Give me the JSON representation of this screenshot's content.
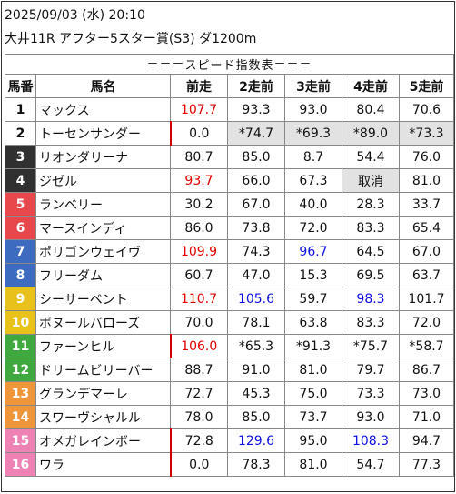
{
  "header": {
    "datetime": "2025/09/03 (水) 20:10",
    "race": "大井11R アフター5スター賞(S3) ダ1200m"
  },
  "table": {
    "title": "＝＝＝スピード指数表＝＝＝",
    "columns": [
      "馬番",
      "馬名",
      "前走",
      "2走前",
      "3走前",
      "4走前",
      "5走前"
    ],
    "rows": [
      {
        "no": "1",
        "name": "マックス",
        "v": [
          "107.7",
          "93.3",
          "93.0",
          "80.4",
          "70.6"
        ],
        "bg": "#ffffff",
        "fg": "#111111",
        "hl": [
          "red",
          "",
          "",
          "",
          ""
        ],
        "gray": [
          false,
          false,
          false,
          false,
          false
        ],
        "bar": false
      },
      {
        "no": "2",
        "name": "トーセンサンダー",
        "v": [
          "0.0",
          "*74.7",
          "*69.3",
          "*89.0",
          "*73.3"
        ],
        "bg": "#ffffff",
        "fg": "#111111",
        "hl": [
          "",
          "",
          "",
          "",
          ""
        ],
        "gray": [
          false,
          true,
          true,
          true,
          true
        ],
        "bar": true
      },
      {
        "no": "3",
        "name": "リオンダリーナ",
        "v": [
          "80.7",
          "85.0",
          "8.7",
          "54.4",
          "76.0"
        ],
        "bg": "#303030",
        "fg": "#ffffff",
        "hl": [
          "",
          "",
          "",
          "",
          ""
        ],
        "gray": [
          false,
          false,
          false,
          false,
          false
        ],
        "bar": false
      },
      {
        "no": "4",
        "name": "ジゼル",
        "v": [
          "93.7",
          "66.0",
          "67.3",
          "取消",
          "81.0"
        ],
        "bg": "#303030",
        "fg": "#ffffff",
        "hl": [
          "red",
          "",
          "",
          "",
          ""
        ],
        "gray": [
          false,
          false,
          false,
          true,
          false
        ],
        "bar": false
      },
      {
        "no": "5",
        "name": "ランベリー",
        "v": [
          "30.2",
          "67.0",
          "40.0",
          "28.3",
          "33.7"
        ],
        "bg": "#e8474c",
        "fg": "#ffffff",
        "hl": [
          "",
          "",
          "",
          "",
          ""
        ],
        "gray": [
          false,
          false,
          false,
          false,
          false
        ],
        "bar": false
      },
      {
        "no": "6",
        "name": "マースインディ",
        "v": [
          "86.0",
          "73.8",
          "72.0",
          "83.3",
          "65.4"
        ],
        "bg": "#e8474c",
        "fg": "#ffffff",
        "hl": [
          "",
          "",
          "",
          "",
          ""
        ],
        "gray": [
          false,
          false,
          false,
          false,
          false
        ],
        "bar": false
      },
      {
        "no": "7",
        "name": "ポリゴンウェイヴ",
        "v": [
          "109.9",
          "74.3",
          "96.7",
          "64.5",
          "67.0"
        ],
        "bg": "#3d6bbf",
        "fg": "#ffffff",
        "hl": [
          "red",
          "",
          "blue",
          "",
          ""
        ],
        "gray": [
          false,
          false,
          false,
          false,
          false
        ],
        "bar": false
      },
      {
        "no": "8",
        "name": "フリーダム",
        "v": [
          "60.7",
          "47.0",
          "15.3",
          "69.5",
          "63.7"
        ],
        "bg": "#3d6bbf",
        "fg": "#ffffff",
        "hl": [
          "",
          "",
          "",
          "",
          ""
        ],
        "gray": [
          false,
          false,
          false,
          false,
          false
        ],
        "bar": false
      },
      {
        "no": "9",
        "name": "シーサーペント",
        "v": [
          "110.7",
          "105.6",
          "59.7",
          "98.3",
          "101.7"
        ],
        "bg": "#e8c21a",
        "fg": "#ffffff",
        "hl": [
          "redbold",
          "blue",
          "",
          "blue",
          ""
        ],
        "gray": [
          false,
          false,
          false,
          false,
          false
        ],
        "bar": false
      },
      {
        "no": "10",
        "name": "ボヌールバローズ",
        "v": [
          "70.0",
          "78.1",
          "63.8",
          "83.3",
          "72.0"
        ],
        "bg": "#e8c21a",
        "fg": "#ffffff",
        "hl": [
          "",
          "",
          "",
          "",
          ""
        ],
        "gray": [
          false,
          false,
          false,
          false,
          false
        ],
        "bar": false
      },
      {
        "no": "11",
        "name": "ファーンヒル",
        "v": [
          "106.0",
          "*65.3",
          "*91.3",
          "*75.7",
          "*58.7"
        ],
        "bg": "#3fa83f",
        "fg": "#ffffff",
        "hl": [
          "red",
          "",
          "",
          "",
          ""
        ],
        "gray": [
          false,
          false,
          false,
          false,
          false
        ],
        "bar": true
      },
      {
        "no": "12",
        "name": "ドリームビリーバー",
        "v": [
          "88.7",
          "91.0",
          "81.0",
          "79.7",
          "86.7"
        ],
        "bg": "#3fa83f",
        "fg": "#ffffff",
        "hl": [
          "",
          "",
          "",
          "",
          ""
        ],
        "gray": [
          false,
          false,
          false,
          false,
          false
        ],
        "bar": false
      },
      {
        "no": "13",
        "name": "グランデマーレ",
        "v": [
          "72.7",
          "45.3",
          "75.0",
          "73.3",
          "73.0"
        ],
        "bg": "#f0963a",
        "fg": "#ffffff",
        "hl": [
          "",
          "",
          "",
          "",
          ""
        ],
        "gray": [
          false,
          false,
          false,
          false,
          false
        ],
        "bar": false
      },
      {
        "no": "14",
        "name": "スワーヴシャルル",
        "v": [
          "78.0",
          "85.0",
          "73.7",
          "93.0",
          "71.0"
        ],
        "bg": "#f0963a",
        "fg": "#ffffff",
        "hl": [
          "",
          "",
          "",
          "",
          ""
        ],
        "gray": [
          false,
          false,
          false,
          false,
          false
        ],
        "bar": false
      },
      {
        "no": "15",
        "name": "オメガレインボー",
        "v": [
          "72.8",
          "129.6",
          "95.0",
          "108.3",
          "94.7"
        ],
        "bg": "#ee82b4",
        "fg": "#ffffff",
        "hl": [
          "",
          "bluebold",
          "",
          "blue",
          ""
        ],
        "gray": [
          false,
          false,
          false,
          false,
          false
        ],
        "bar": true
      },
      {
        "no": "16",
        "name": "ワラ",
        "v": [
          "0.0",
          "78.3",
          "81.0",
          "54.7",
          "77.3"
        ],
        "bg": "#ee82b4",
        "fg": "#ffffff",
        "hl": [
          "",
          "",
          "",
          "",
          ""
        ],
        "gray": [
          false,
          false,
          false,
          false,
          false
        ],
        "bar": true
      }
    ]
  }
}
